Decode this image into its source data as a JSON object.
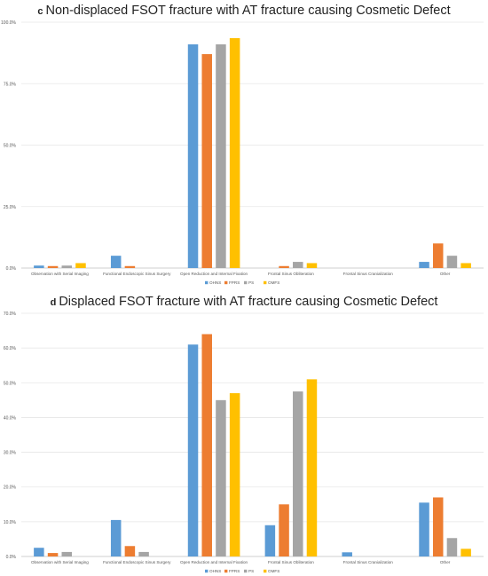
{
  "chart_data": [
    {
      "id": "c",
      "type": "bar",
      "panel_letter": "c",
      "title": "Non-displaced FSOT fracture with AT fracture causing Cosmetic Defect",
      "categories": [
        "Observation with Serial Imaging",
        "Functional Endoscopic Sinus Surgery",
        "Open Reduction and Internal Fixation",
        "Frontal Sinus Obliteration",
        "Frontal Sinus Cranialization",
        "Other"
      ],
      "series": [
        {
          "name": "OHNS",
          "color": "#5b9bd5",
          "values": [
            1.0,
            5.0,
            91.0,
            0.0,
            0.0,
            2.5
          ]
        },
        {
          "name": "FPRS",
          "color": "#ed7d31",
          "values": [
            0.8,
            0.8,
            87.0,
            0.8,
            0.0,
            10.0
          ]
        },
        {
          "name": "PS",
          "color": "#a5a5a5",
          "values": [
            1.0,
            0.0,
            91.0,
            2.5,
            0.0,
            5.0
          ]
        },
        {
          "name": "OMFS",
          "color": "#ffc000",
          "values": [
            2.0,
            0.0,
            93.5,
            2.0,
            0.0,
            2.0
          ]
        }
      ],
      "ylim": [
        0,
        100
      ],
      "yticks": [
        0,
        25,
        50,
        75,
        100
      ],
      "ytick_labels": [
        "0.0%",
        "25.0%",
        "50.0%",
        "75.0%",
        "100.0%"
      ],
      "grid": true,
      "legend_position": "bottom",
      "xlabel": "",
      "ylabel": ""
    },
    {
      "id": "d",
      "type": "bar",
      "panel_letter": "d",
      "title": "Displaced FSOT fracture with AT fracture causing Cosmetic Defect",
      "categories": [
        "Observation with Serial Imaging",
        "Functional Endoscopic Sinus Surgery",
        "Open Reduction and Internal Fixation",
        "Frontal Sinus Obliteration",
        "Frontal Sinus Cranialization",
        "Other"
      ],
      "series": [
        {
          "name": "OHNS",
          "color": "#5b9bd5",
          "values": [
            2.5,
            10.5,
            61.0,
            9.0,
            1.2,
            15.5
          ]
        },
        {
          "name": "FPRS",
          "color": "#ed7d31",
          "values": [
            1.0,
            3.0,
            64.0,
            15.0,
            0.0,
            17.0
          ]
        },
        {
          "name": "PS",
          "color": "#a5a5a5",
          "values": [
            1.3,
            1.3,
            45.0,
            47.5,
            0.0,
            5.3
          ]
        },
        {
          "name": "OMFS",
          "color": "#ffc000",
          "values": [
            0.0,
            0.0,
            47.0,
            51.0,
            0.0,
            2.2
          ]
        }
      ],
      "ylim": [
        0,
        70
      ],
      "yticks": [
        0,
        10,
        20,
        30,
        40,
        50,
        60,
        70
      ],
      "ytick_labels": [
        "0.0%",
        "10.0%",
        "20.0%",
        "30.0%",
        "40.0%",
        "50.0%",
        "60.0%",
        "70.0%"
      ],
      "grid": true,
      "legend_position": "bottom",
      "xlabel": "",
      "ylabel": ""
    }
  ]
}
